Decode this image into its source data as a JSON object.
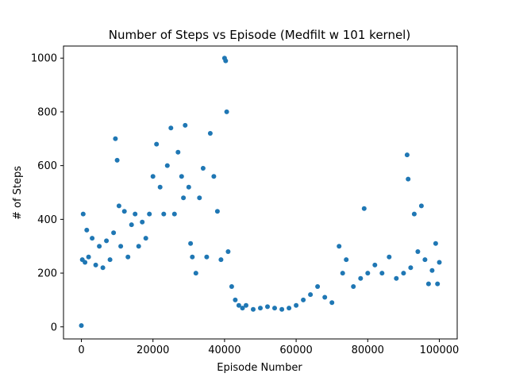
{
  "chart_data": {
    "type": "scatter",
    "title": "Number of Steps vs Episode (Medfilt w 101 kernel)",
    "xlabel": "Episode Number",
    "ylabel": "# of Steps",
    "xlim": [
      -5000,
      105000
    ],
    "ylim": [
      -45,
      1045
    ],
    "xticks": [
      0,
      20000,
      40000,
      60000,
      80000,
      100000
    ],
    "yticks": [
      0,
      200,
      400,
      600,
      800,
      1000
    ],
    "grid": false,
    "legend": "none",
    "marker_color": "#1f77b4",
    "series": [
      {
        "x": [
          0,
          250,
          500,
          1000,
          1500,
          2000,
          3000,
          4000,
          5000,
          6000,
          7000,
          8000,
          9000,
          9500,
          10000,
          10500,
          11000,
          12000,
          13000,
          14000,
          15000,
          16000,
          17000,
          18000,
          19000,
          20000,
          21000,
          22000,
          23000,
          24000,
          25000,
          26000,
          27000,
          28000,
          28500,
          29000,
          30000,
          30500,
          31000,
          32000,
          33000,
          34000,
          35000,
          36000,
          37000,
          38000,
          39000,
          40000,
          40300,
          40600,
          41000,
          42000,
          43000,
          44000,
          45000,
          46000,
          48000,
          50000,
          52000,
          54000,
          56000,
          58000,
          60000,
          62000,
          64000,
          66000,
          68000,
          70000,
          72000,
          73000,
          74000,
          76000,
          78000,
          79000,
          80000,
          82000,
          84000,
          86000,
          88000,
          90000,
          91000,
          91300,
          92000,
          93000,
          94000,
          95000,
          96000,
          97000,
          98000,
          99000,
          99500,
          100000
        ],
        "y": [
          5,
          250,
          420,
          240,
          360,
          260,
          330,
          230,
          300,
          220,
          320,
          250,
          350,
          700,
          620,
          450,
          300,
          430,
          260,
          380,
          420,
          300,
          390,
          330,
          420,
          560,
          680,
          520,
          420,
          600,
          740,
          420,
          650,
          560,
          480,
          750,
          520,
          310,
          260,
          200,
          480,
          590,
          260,
          720,
          560,
          430,
          250,
          1000,
          990,
          800,
          280,
          150,
          100,
          80,
          70,
          80,
          65,
          70,
          75,
          70,
          65,
          70,
          80,
          100,
          120,
          150,
          110,
          90,
          300,
          200,
          250,
          150,
          180,
          440,
          200,
          230,
          200,
          260,
          180,
          200,
          640,
          550,
          220,
          420,
          280,
          450,
          250,
          160,
          210,
          310,
          160,
          240
        ]
      }
    ]
  }
}
